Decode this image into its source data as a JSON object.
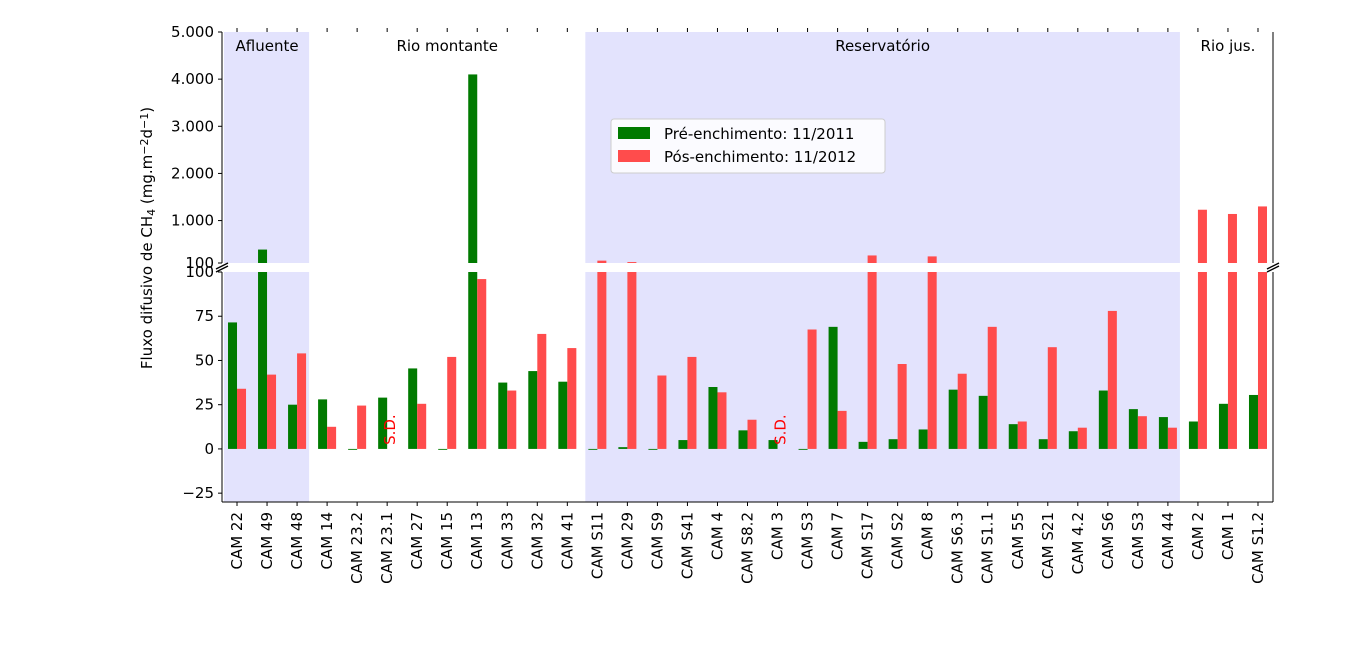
{
  "chart_data": {
    "type": "bar",
    "title": "",
    "xlabel": "",
    "ylabel_parts": [
      "Fluxo difusivo de CH",
      "4",
      " (mg.m",
      "−2",
      "d",
      "−1",
      ")"
    ],
    "legend_placement": "upper-center",
    "grid": false,
    "categories": [
      "CAM 22",
      "CAM 49",
      "CAM 48",
      "CAM 14",
      "CAM 23.2",
      "CAM 23.1",
      "CAM 27",
      "CAM 15",
      "CAM 13",
      "CAM 33",
      "CAM 32",
      "CAM 41",
      "CAM S11",
      "CAM 29",
      "CAM S9",
      "CAM S41",
      "CAM 4",
      "CAM S8.2",
      "CAM 3",
      "CAM S3",
      "CAM 7",
      "CAM S17",
      "CAM S2",
      "CAM 8",
      "CAM S6.3",
      "CAM S1.1",
      "CAM 55",
      "CAM S21",
      "CAM 4.2",
      "CAM S6",
      "CAM S3",
      "CAM 44",
      "CAM 2",
      "CAM 1",
      "CAM S1.2"
    ],
    "series": [
      {
        "name": "Pré-enchimento: 11/2011",
        "color": "#007a00",
        "values": [
          71.5,
          385,
          25,
          28,
          -0.5,
          29,
          45.5,
          -0.5,
          4100,
          37.5,
          44,
          38,
          -0.5,
          1,
          -0.5,
          5,
          35,
          10.5,
          5,
          -0.5,
          69,
          4,
          5.5,
          11,
          33.5,
          30,
          14,
          5.5,
          10,
          33,
          22.5,
          18,
          15.5,
          25.5,
          30.5
        ]
      },
      {
        "name": "Pós-enchimento: 11/2012",
        "color": "#ff4c4c",
        "values": [
          34,
          42,
          54,
          12.5,
          24.5,
          null,
          25.5,
          52,
          96,
          33,
          65,
          57,
          150,
          120,
          41.5,
          52,
          32,
          16.5,
          null,
          67.5,
          21.5,
          260,
          48,
          240,
          42.5,
          69,
          15.5,
          57.5,
          12,
          78,
          18.5,
          12,
          1230,
          1140,
          1300
        ]
      }
    ],
    "upper_axis": {
      "ylim": [
        100,
        5000
      ],
      "ticks": [
        100,
        1000,
        2000,
        3000,
        4000,
        5000
      ],
      "tick_labels": [
        "100",
        "1.000",
        "2.000",
        "3.000",
        "4.000",
        "5.000"
      ]
    },
    "lower_axis": {
      "ylim": [
        -30,
        100
      ],
      "ticks": [
        -25,
        0,
        25,
        50,
        75,
        100
      ],
      "tick_labels": [
        "−25",
        "0",
        "25",
        "50",
        "75",
        "100"
      ]
    },
    "regions": [
      {
        "label": "Afluente",
        "start": 0,
        "end": 2,
        "shaded": true
      },
      {
        "label": "Rio montante",
        "start": 3,
        "end": 11,
        "shaded": false
      },
      {
        "label": "Reservatório",
        "start": 12,
        "end": 31,
        "shaded": true
      },
      {
        "label": "Rio jus.",
        "start": 32,
        "end": 34,
        "shaded": false
      }
    ],
    "region_color": "#e3e3fd",
    "no_data_label": "S.D.",
    "no_data_categories": [
      5,
      18
    ],
    "no_data_color": "#ff0000"
  }
}
